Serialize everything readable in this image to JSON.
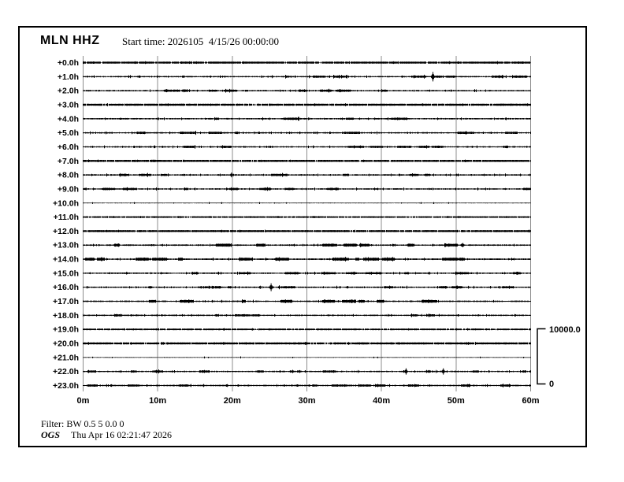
{
  "header": {
    "station": "MLN HHZ",
    "start_time_label": "Start time: 2026105  4/15/26 00:00:00"
  },
  "footer": {
    "filter": "Filter: BW 0.5 5 0.0 0",
    "agency": "OGS",
    "generated": "Thu Apr 16 02:21:47 2026"
  },
  "scale_bar": {
    "max_label": "10000.0",
    "min_label": "0"
  },
  "chart_data": {
    "type": "line",
    "subtype": "helicorder-seismogram",
    "title": "MLN HHZ",
    "start_time": "2026105 4/15/26 00:00:00",
    "x_unit": "minutes",
    "xlim": [
      0,
      60
    ],
    "x_ticks": [
      "0m",
      "10m",
      "20m",
      "30m",
      "40m",
      "50m",
      "60m"
    ],
    "grid": "vertical-only",
    "grid_color": "#8c8c8c",
    "trace_color": "#000000",
    "legend_position": "none",
    "scale": {
      "max": 10000.0,
      "min": 0
    },
    "rows": [
      {
        "label": "+0.0h",
        "style": "heavy",
        "events": []
      },
      {
        "label": "+1.0h",
        "style": "noisy",
        "events": [
          {
            "type": "spike",
            "minute": 46.9,
            "amplitude": 6
          }
        ]
      },
      {
        "label": "+2.0h",
        "style": "noisy",
        "events": []
      },
      {
        "label": "+3.0h",
        "style": "heavy",
        "events": []
      },
      {
        "label": "+4.0h",
        "style": "noisy",
        "events": []
      },
      {
        "label": "+5.0h",
        "style": "noisy",
        "events": []
      },
      {
        "label": "+6.0h",
        "style": "noisy",
        "events": []
      },
      {
        "label": "+7.0h",
        "style": "heavy",
        "events": [
          {
            "type": "burst",
            "minute": 6.9,
            "amplitude": 1.6,
            "width_minutes": 0.5
          },
          {
            "type": "burst",
            "minute": 9.4,
            "amplitude": 1.8,
            "width_minutes": 0.7
          }
        ]
      },
      {
        "label": "+8.0h",
        "style": "noisy",
        "events": [
          {
            "type": "spike",
            "minute": 19.9,
            "amplitude": 3
          }
        ]
      },
      {
        "label": "+9.0h",
        "style": "noisy",
        "events": []
      },
      {
        "label": "+10.0h",
        "style": "quiet",
        "events": []
      },
      {
        "label": "+11.0h",
        "style": "dark",
        "events": []
      },
      {
        "label": "+12.0h",
        "style": "heavy",
        "events": []
      },
      {
        "label": "+13.0h",
        "style": "dashed",
        "events": []
      },
      {
        "label": "+14.0h",
        "style": "dashed",
        "events": []
      },
      {
        "label": "+15.0h",
        "style": "noisy",
        "events": []
      },
      {
        "label": "+16.0h",
        "style": "noisy",
        "events": [
          {
            "type": "burst",
            "minute": 17.0,
            "amplitude": 2,
            "width_minutes": 3.2
          },
          {
            "type": "spike",
            "minute": 25.2,
            "amplitude": 5
          },
          {
            "type": "spike",
            "minute": 26.3,
            "amplitude": 2.5
          }
        ]
      },
      {
        "label": "+17.0h",
        "style": "dashed",
        "events": []
      },
      {
        "label": "+18.0h",
        "style": "noisy",
        "events": []
      },
      {
        "label": "+19.0h",
        "style": "dark",
        "events": []
      },
      {
        "label": "+20.0h",
        "style": "heavy",
        "events": []
      },
      {
        "label": "+21.0h",
        "style": "quiet",
        "events": []
      },
      {
        "label": "+22.0h",
        "style": "noisy",
        "events": [
          {
            "type": "spike",
            "minute": 43.3,
            "amplitude": 4
          },
          {
            "type": "spike",
            "minute": 48.3,
            "amplitude": 4
          }
        ]
      },
      {
        "label": "+23.0h",
        "style": "noisy",
        "events": []
      }
    ]
  }
}
